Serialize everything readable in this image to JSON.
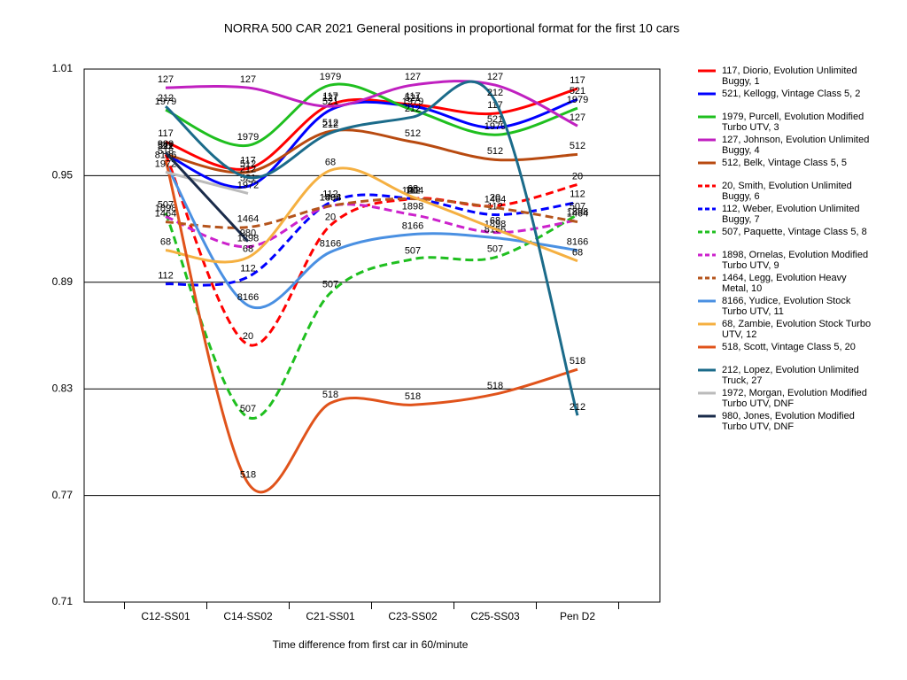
{
  "chart_data": {
    "type": "line",
    "title": "NORRA 500 CAR 2021  General positions in proportional format for the first 10 cars",
    "x_label": "Time difference from first car in 60/minute",
    "categories": [
      "C12-SS01",
      "C14-SS02",
      "C21-SS01",
      "C23-SS02",
      "C25-SS03",
      "Pen D2"
    ],
    "ylim": [
      0.71,
      1.01
    ],
    "yticks": [
      0.71,
      0.77,
      0.83,
      0.89,
      0.95,
      1.01
    ],
    "grid": true,
    "legend": "right",
    "smooth": true,
    "series": [
      {
        "name": "117, Diorio, Evolution Unlimited Buggy, 1",
        "label": "117",
        "color": "#ff0000",
        "dash": false,
        "values": [
          0.969,
          0.954,
          0.99,
          0.99,
          0.985,
          0.999
        ]
      },
      {
        "name": "521, Kellogg, Vintage Class 5, 2",
        "label": "521",
        "color": "#0000ff",
        "dash": false,
        "values": [
          0.962,
          0.944,
          0.987,
          0.989,
          0.977,
          0.993
        ]
      },
      {
        "name": "1979, Purcell, Evolution Modified Turbo UTV, 3",
        "label": "1979",
        "color": "#1fbf1f",
        "dash": false,
        "values": [
          0.987,
          0.967,
          1.001,
          0.987,
          0.973,
          0.988
        ]
      },
      {
        "name": "127, Johnson, Evolution Unlimited Buggy, 4",
        "label": "127",
        "color": "#c020c0",
        "dash": false,
        "values": [
          0.9995,
          0.9995,
          0.989,
          1.001,
          1.001,
          0.978
        ]
      },
      {
        "name": "512, Belk, Vintage Class 5, 5",
        "label": "512",
        "color": "#b84a10",
        "dash": false,
        "values": [
          0.962,
          0.952,
          0.975,
          0.969,
          0.959,
          0.962
        ]
      },
      {
        "name": "20, Smith, Evolution Unlimited Buggy, 6",
        "label": "20",
        "color": "#ff0000",
        "dash": true,
        "values": [
          0.962,
          0.855,
          0.922,
          0.937,
          0.933,
          0.945
        ]
      },
      {
        "name": "112, Weber, Evolution Unlimited Buggy, 7",
        "label": "112",
        "color": "#0000ff",
        "dash": true,
        "values": [
          0.889,
          0.893,
          0.935,
          0.937,
          0.928,
          0.935
        ]
      },
      {
        "name": "507, Paquette, Vintage Class 5, 8",
        "label": "507",
        "color": "#1fbf1f",
        "dash": true,
        "values": [
          0.929,
          0.814,
          0.884,
          0.903,
          0.904,
          0.928
        ]
      },
      {
        "name": "1898, Ornelas, Evolution Modified Turbo UTV, 9",
        "label": "1898",
        "color": "#cc22cc",
        "dash": true,
        "values": [
          0.927,
          0.91,
          0.933,
          0.928,
          0.918,
          0.925
        ]
      },
      {
        "name": "1464, Legg, Evolution Heavy Metal, 10",
        "label": "1464",
        "color": "#b5541c",
        "dash": true,
        "values": [
          0.924,
          0.921,
          0.933,
          0.937,
          0.932,
          0.924
        ]
      },
      {
        "name": "8166, Yudice, Evolution Stock Turbo UTV, 11",
        "label": "8166",
        "color": "#4a90e2",
        "dash": false,
        "values": [
          0.957,
          0.877,
          0.907,
          0.917,
          0.915,
          0.908
        ]
      },
      {
        "name": "68, Zambie, Evolution Stock Turbo UTV, 12",
        "label": "68",
        "color": "#f5b041",
        "dash": false,
        "values": [
          0.908,
          0.904,
          0.953,
          0.938,
          0.92,
          0.902
        ]
      },
      {
        "name": "518, Scott, Vintage Class 5, 20",
        "label": "518",
        "color": "#e0531b",
        "dash": false,
        "values": [
          0.959,
          0.777,
          0.822,
          0.821,
          0.827,
          0.841
        ]
      },
      {
        "name": "212, Lopez, Evolution Unlimited Truck, 27",
        "label": "212",
        "color": "#1b6b8a",
        "dash": false,
        "values": [
          0.989,
          0.949,
          0.974,
          0.983,
          0.992,
          0.815
        ]
      },
      {
        "name": "1972, Morgan, Evolution Modified Turbo UTV, DNF",
        "label": "1972",
        "color": "#bbbbbb",
        "dash": false,
        "values": [
          0.952,
          0.94,
          null,
          null,
          null,
          null
        ]
      },
      {
        "name": "980, Jones, Evolution Modified Turbo UTV, DNF",
        "label": "980",
        "color": "#1a2b4a",
        "dash": false,
        "values": [
          0.963,
          0.913,
          null,
          null,
          null,
          null
        ]
      }
    ]
  }
}
